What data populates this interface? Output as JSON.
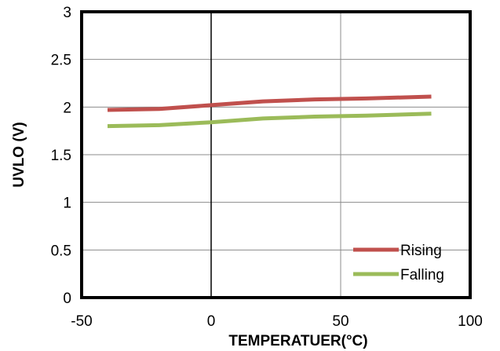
{
  "chart_data": {
    "type": "line",
    "title": "",
    "xlabel": "TEMPERATUER(°C)",
    "ylabel": "UVLO (V)",
    "xlim": [
      -50,
      100
    ],
    "ylim": [
      0,
      3
    ],
    "x_ticks": [
      "-50",
      "0",
      "50",
      "100"
    ],
    "y_ticks": [
      "0",
      "0.5",
      "1",
      "1.5",
      "2",
      "2.5",
      "3"
    ],
    "grid": true,
    "legend_position": "bottom-right",
    "x": [
      -40,
      -20,
      0,
      20,
      40,
      60,
      85
    ],
    "series": [
      {
        "name": "Rising",
        "color": "#C0504D",
        "values": [
          1.97,
          1.98,
          2.02,
          2.06,
          2.08,
          2.09,
          2.11
        ]
      },
      {
        "name": "Falling",
        "color": "#9BBB59",
        "values": [
          1.8,
          1.81,
          1.84,
          1.88,
          1.9,
          1.91,
          1.93
        ]
      }
    ]
  }
}
